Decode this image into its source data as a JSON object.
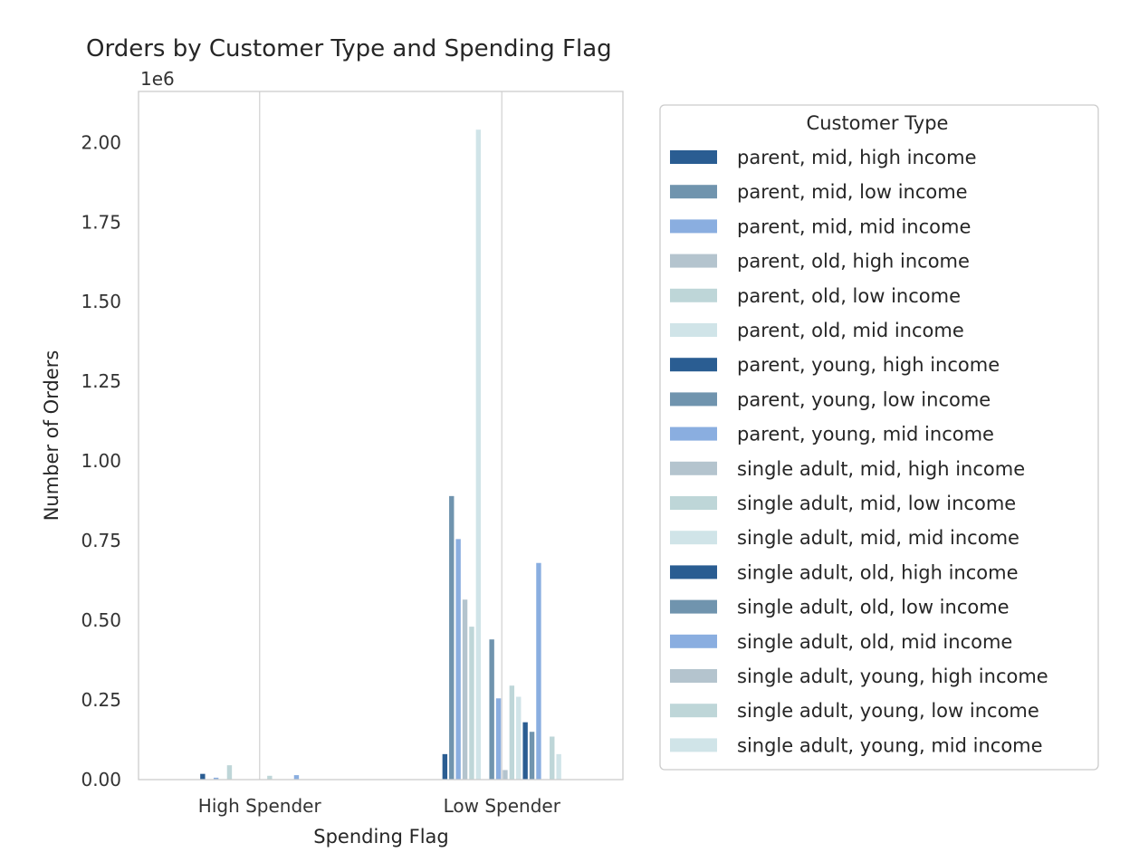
{
  "chart_data": {
    "type": "bar",
    "title": "Orders by Customer Type and Spending Flag",
    "xlabel": "Spending Flag",
    "ylabel": "Number of Orders",
    "y_offset_label": "1e6",
    "y_scale": 1000000,
    "ylim": [
      0,
      2160000
    ],
    "yticks": [
      0,
      250000,
      500000,
      750000,
      1000000,
      1250000,
      1500000,
      1750000,
      2000000
    ],
    "ytick_labels": [
      "0.00",
      "0.25",
      "0.50",
      "0.75",
      "1.00",
      "1.25",
      "1.50",
      "1.75",
      "2.00"
    ],
    "categories": [
      "High Spender",
      "Low Spender"
    ],
    "grid": "vertical",
    "legend": {
      "title": "Customer Type",
      "placement": "outside-right"
    },
    "series": [
      {
        "name": "parent, mid, high income",
        "color": "#2a5d92",
        "values": [
          18000,
          80000
        ]
      },
      {
        "name": "parent, mid, low income",
        "color": "#7094ae",
        "values": [
          0,
          890000
        ]
      },
      {
        "name": "parent, mid, mid income",
        "color": "#8aaee0",
        "values": [
          6000,
          755000
        ]
      },
      {
        "name": "parent, old, high income",
        "color": "#b4c4ce",
        "values": [
          0,
          565000
        ]
      },
      {
        "name": "parent, old, low income",
        "color": "#bed6d8",
        "values": [
          45000,
          480000
        ]
      },
      {
        "name": "parent, old, mid income",
        "color": "#d0e4e8",
        "values": [
          0,
          2040000
        ]
      },
      {
        "name": "parent, young, high income",
        "color": "#2a5d92",
        "values": [
          0,
          0
        ]
      },
      {
        "name": "parent, young, low income",
        "color": "#7094ae",
        "values": [
          0,
          440000
        ]
      },
      {
        "name": "parent, young, mid income",
        "color": "#8aaee0",
        "values": [
          0,
          255000
        ]
      },
      {
        "name": "single adult, mid, high income",
        "color": "#b4c4ce",
        "values": [
          0,
          30000
        ]
      },
      {
        "name": "single adult, mid, low income",
        "color": "#bed6d8",
        "values": [
          12000,
          295000
        ]
      },
      {
        "name": "single adult, mid, mid income",
        "color": "#d0e4e8",
        "values": [
          0,
          260000
        ]
      },
      {
        "name": "single adult, old, high income",
        "color": "#2a5d92",
        "values": [
          0,
          180000
        ]
      },
      {
        "name": "single adult, old, low income",
        "color": "#7094ae",
        "values": [
          0,
          150000
        ]
      },
      {
        "name": "single adult, old, mid income",
        "color": "#8aaee0",
        "values": [
          14000,
          680000
        ]
      },
      {
        "name": "single adult, young, high income",
        "color": "#b4c4ce",
        "values": [
          0,
          0
        ]
      },
      {
        "name": "single adult, young, low income",
        "color": "#bed6d8",
        "values": [
          0,
          135000
        ]
      },
      {
        "name": "single adult, young, mid income",
        "color": "#d0e4e8",
        "values": [
          0,
          80000
        ]
      }
    ]
  }
}
